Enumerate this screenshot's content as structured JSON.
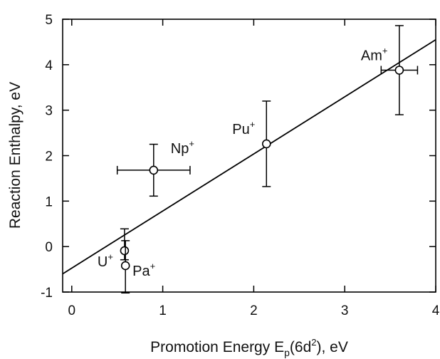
{
  "chart_data": {
    "type": "scatter",
    "xlabel_parts": [
      "Promotion Energy E",
      "p",
      "(6d",
      "2",
      "), eV"
    ],
    "ylabel": "Reaction Enthalpy, eV",
    "xlim": [
      -0.1,
      4.0
    ],
    "ylim": [
      -1,
      5
    ],
    "xticks": [
      0,
      1,
      2,
      3,
      4
    ],
    "yticks": [
      -1,
      0,
      1,
      2,
      3,
      4,
      5
    ],
    "grid": false,
    "points": [
      {
        "label": "U",
        "charge": "+",
        "x": 0.58,
        "y": -0.09,
        "yerr_low": 0.2,
        "yerr_high": 0.48,
        "xerr": 0
      },
      {
        "label": "Pa",
        "charge": "+",
        "x": 0.59,
        "y": -0.42,
        "yerr_low": 0.6,
        "yerr_high": 0.55,
        "xerr": 0
      },
      {
        "label": "Np",
        "charge": "+",
        "x": 0.9,
        "y": 1.68,
        "yerr_low": 0.57,
        "yerr_high": 0.57,
        "xerr": 0.4
      },
      {
        "label": "Pu",
        "charge": "+",
        "x": 2.14,
        "y": 2.26,
        "yerr_low": 0.94,
        "yerr_high": 0.94,
        "xerr": 0
      },
      {
        "label": "Am",
        "charge": "+",
        "x": 3.6,
        "y": 3.88,
        "yerr_low": 0.98,
        "yerr_high": 0.98,
        "xerr": 0.2
      }
    ],
    "fit_line": {
      "x": [
        -0.1,
        4.0
      ],
      "y": [
        -0.6,
        4.55
      ]
    }
  }
}
